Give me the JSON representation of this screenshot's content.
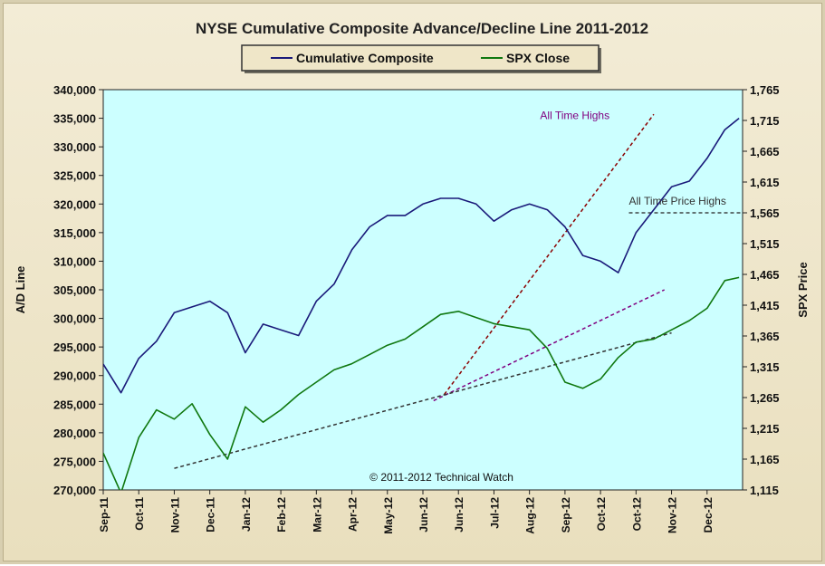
{
  "chart_data": {
    "type": "line",
    "title": "NYSE Cumulative  Composite Advance/Decline Line 2011-2012",
    "ylabel": "A/D Line",
    "y2label": "SPX Price",
    "ylim": [
      270000,
      340000
    ],
    "y2lim": [
      1115,
      1765
    ],
    "yticks": [
      "270,000",
      "275,000",
      "280,000",
      "285,000",
      "290,000",
      "295,000",
      "300,000",
      "305,000",
      "310,000",
      "315,000",
      "320,000",
      "325,000",
      "330,000",
      "335,000",
      "340,000"
    ],
    "y2ticks": [
      "1,115",
      "1,165",
      "1,215",
      "1,265",
      "1,315",
      "1,365",
      "1,415",
      "1,465",
      "1,515",
      "1,565",
      "1,615",
      "1,665",
      "1,715",
      "1,765"
    ],
    "xticks": [
      "Sep-11",
      "Oct-11",
      "Nov-11",
      "Dec-11",
      "Jan-12",
      "Feb-12",
      "Mar-12",
      "Apr-12",
      "May-12",
      "Jun-12",
      "Jun-12",
      "Jul-12",
      "Aug-12",
      "Sep-12",
      "Oct-12",
      "Oct-12",
      "Nov-12",
      "Dec-12"
    ],
    "legend_position": "top-center",
    "grid": false,
    "colors": {
      "plot_bg": "#ccffff",
      "ad_line": "#1a1a7a",
      "spx": "#107810",
      "trend_red": "#8b0000",
      "trend_purple": "#800080",
      "trend_black": "#333333"
    },
    "series": [
      {
        "name": "Cumulative Composite",
        "axis": "left",
        "x": [
          0,
          0.5,
          1,
          1.5,
          2,
          2.5,
          3,
          3.5,
          4,
          4.5,
          5,
          5.5,
          6,
          6.5,
          7,
          7.5,
          8,
          8.5,
          9,
          9.5,
          10,
          10.5,
          11,
          11.5,
          12,
          12.5,
          13,
          13.5,
          14,
          14.5,
          15,
          15.5,
          16,
          16.5,
          17,
          17.5,
          17.9
        ],
        "values": [
          292000,
          287000,
          293000,
          296000,
          301000,
          302000,
          303000,
          301000,
          294000,
          299000,
          298000,
          297000,
          303000,
          306000,
          312000,
          316000,
          318000,
          318000,
          320000,
          321000,
          321000,
          320000,
          317000,
          319000,
          320000,
          319000,
          316000,
          311000,
          310000,
          308000,
          315000,
          319000,
          323000,
          324000,
          328000,
          333000,
          335000
        ]
      },
      {
        "name": "SPX Close",
        "axis": "right",
        "x": [
          0,
          0.5,
          1,
          1.5,
          2,
          2.5,
          3,
          3.5,
          4,
          4.5,
          5,
          5.5,
          6,
          6.5,
          7,
          7.5,
          8,
          8.5,
          9,
          9.5,
          10,
          10.5,
          11,
          11.5,
          12,
          12.5,
          13,
          13.5,
          14,
          14.5,
          15,
          15.5,
          16,
          16.5,
          17,
          17.5,
          17.9
        ],
        "values": [
          1175,
          1110,
          1200,
          1245,
          1230,
          1255,
          1205,
          1165,
          1250,
          1225,
          1245,
          1270,
          1290,
          1310,
          1320,
          1335,
          1350,
          1360,
          1380,
          1400,
          1405,
          1395,
          1385,
          1380,
          1375,
          1345,
          1290,
          1280,
          1295,
          1330,
          1355,
          1360,
          1375,
          1390,
          1410,
          1455,
          1460
        ]
      }
    ],
    "trend_lines": [
      {
        "color_key": "trend_red",
        "x": [
          9.6,
          15.5
        ],
        "values_right": [
          1270,
          1725
        ]
      },
      {
        "color_key": "trend_purple",
        "x": [
          9.3,
          15.8
        ],
        "values_right": [
          1260,
          1440
        ]
      },
      {
        "color_key": "trend_black",
        "x": [
          2.0,
          16.0
        ],
        "values_right": [
          1150,
          1370
        ]
      }
    ],
    "reference_line": {
      "x": [
        14.8,
        18
      ],
      "value_right": 1565
    },
    "annotations": [
      {
        "text": "All Time Highs",
        "x": 12.3,
        "y_right": 1717,
        "color": "#800080"
      },
      {
        "text": "All Time Price Highs",
        "x": 14.8,
        "y_right": 1578,
        "color": "#333333"
      },
      {
        "text": "© 2011-2012  Technical Watch",
        "x": 7.5,
        "y_right": 1130,
        "color": "#111111"
      }
    ]
  }
}
